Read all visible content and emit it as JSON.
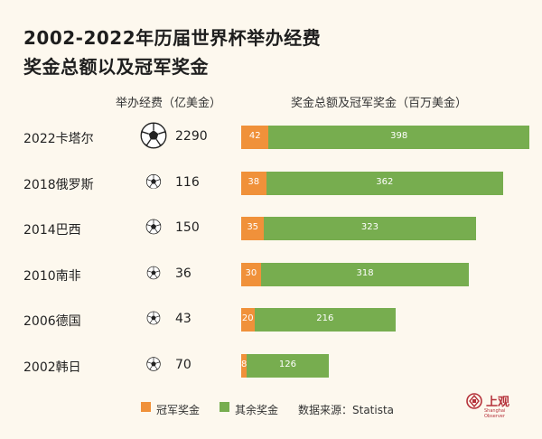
{
  "title_line1": "2002-2022年历届世界杯举办经费",
  "title_line2": "奖金总额以及冠军奖金",
  "header_cost": "举办经费（亿美金）",
  "header_prize": "奖金总额及冠军奖金（百万美金）",
  "chart_data": {
    "type": "bar",
    "stacked": true,
    "orientation": "horizontal",
    "categories": [
      "2022卡塔尔",
      "2018俄罗斯",
      "2014巴西",
      "2010南非",
      "2006德国",
      "2002韩日"
    ],
    "hosting_cost": [
      "2290",
      "116",
      "150",
      "36",
      "43",
      "70"
    ],
    "series": [
      {
        "name": "冠军奖金",
        "values": [
          42,
          38,
          35,
          30,
          20,
          8
        ],
        "color": "#f0913a"
      },
      {
        "name": "其余奖金",
        "values": [
          398,
          362,
          323,
          318,
          216,
          126
        ],
        "color": "#77ad4f"
      }
    ]
  },
  "legend": {
    "champion": "冠军奖金",
    "other": "其余奖金",
    "source": "数据来源：Statista"
  },
  "logo": {
    "text": "上观",
    "sub": "Shanghai Observer"
  },
  "icons": {
    "ball": "football-icon"
  }
}
